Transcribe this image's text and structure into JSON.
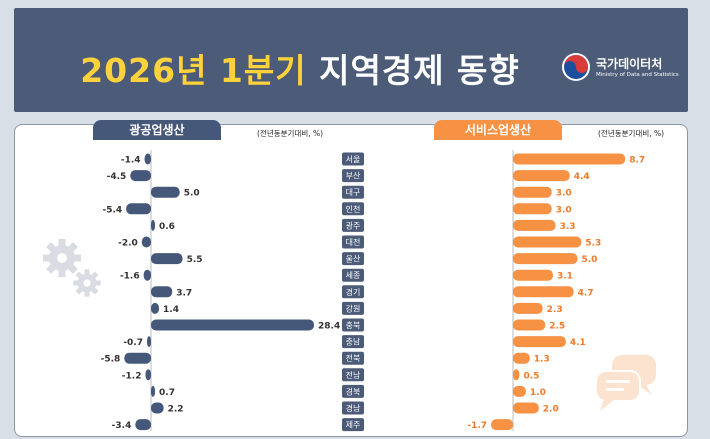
{
  "header": {
    "title_yellow": "2026년 1분기",
    "title_white": "지역경제 동향",
    "logo_name": "국가데이터처",
    "logo_sub": "Ministry of Data and Statistics"
  },
  "chart_data": [
    {
      "type": "bar",
      "orientation": "horizontal",
      "title": "광공업생산",
      "unit": "(전년동분기대비, %)",
      "categories": [
        "서울",
        "부산",
        "대구",
        "인천",
        "광주",
        "대전",
        "울산",
        "세종",
        "경기",
        "강원",
        "충북",
        "충남",
        "전북",
        "전남",
        "경북",
        "경남",
        "제주"
      ],
      "values": [
        -1.4,
        -4.5,
        5.0,
        -5.4,
        0.6,
        -2.0,
        5.5,
        -1.6,
        3.7,
        1.4,
        28.4,
        -0.7,
        -5.8,
        -1.2,
        0.7,
        2.2,
        -3.4
      ],
      "labels": [
        "-1.4",
        "-4.5",
        "5.0",
        "-5.4",
        "0.6",
        "-2.0",
        "5.5",
        "-1.6",
        "3.7",
        "1.4",
        "28.4",
        "-0.7",
        "-5.8",
        "-1.2",
        "0.7",
        "2.2",
        "-3.4"
      ],
      "color": "#46587a"
    },
    {
      "type": "bar",
      "orientation": "horizontal",
      "title": "서비스업생산",
      "unit": "(전년동분기대비, %)",
      "categories": [
        "서울",
        "부산",
        "대구",
        "인천",
        "광주",
        "대전",
        "울산",
        "세종",
        "경기",
        "강원",
        "충북",
        "충남",
        "전북",
        "전남",
        "경북",
        "경남",
        "제주"
      ],
      "values": [
        8.7,
        4.4,
        3.0,
        3.0,
        3.3,
        5.3,
        5.0,
        3.1,
        4.7,
        2.3,
        2.5,
        4.1,
        1.3,
        0.5,
        1.0,
        2.0,
        -1.7
      ],
      "labels": [
        "8.7",
        "4.4",
        "3.0",
        "3.0",
        "3.3",
        "5.3",
        "5.0",
        "3.1",
        "4.7",
        "2.3",
        "2.5",
        "4.1",
        "1.3",
        "0.5",
        "1.0",
        "2.0",
        "-1.7"
      ],
      "color": "#f79144"
    }
  ],
  "colors": {
    "header_bg": "#4b5b78",
    "title_yellow": "#ffd23c",
    "industry": "#46587a",
    "service": "#f79144",
    "service_label": "#f07a2a",
    "region_label_bg": "#4b5b78",
    "icon_gray": "#d9dce3",
    "icon_orange": "#fbe3cf"
  }
}
